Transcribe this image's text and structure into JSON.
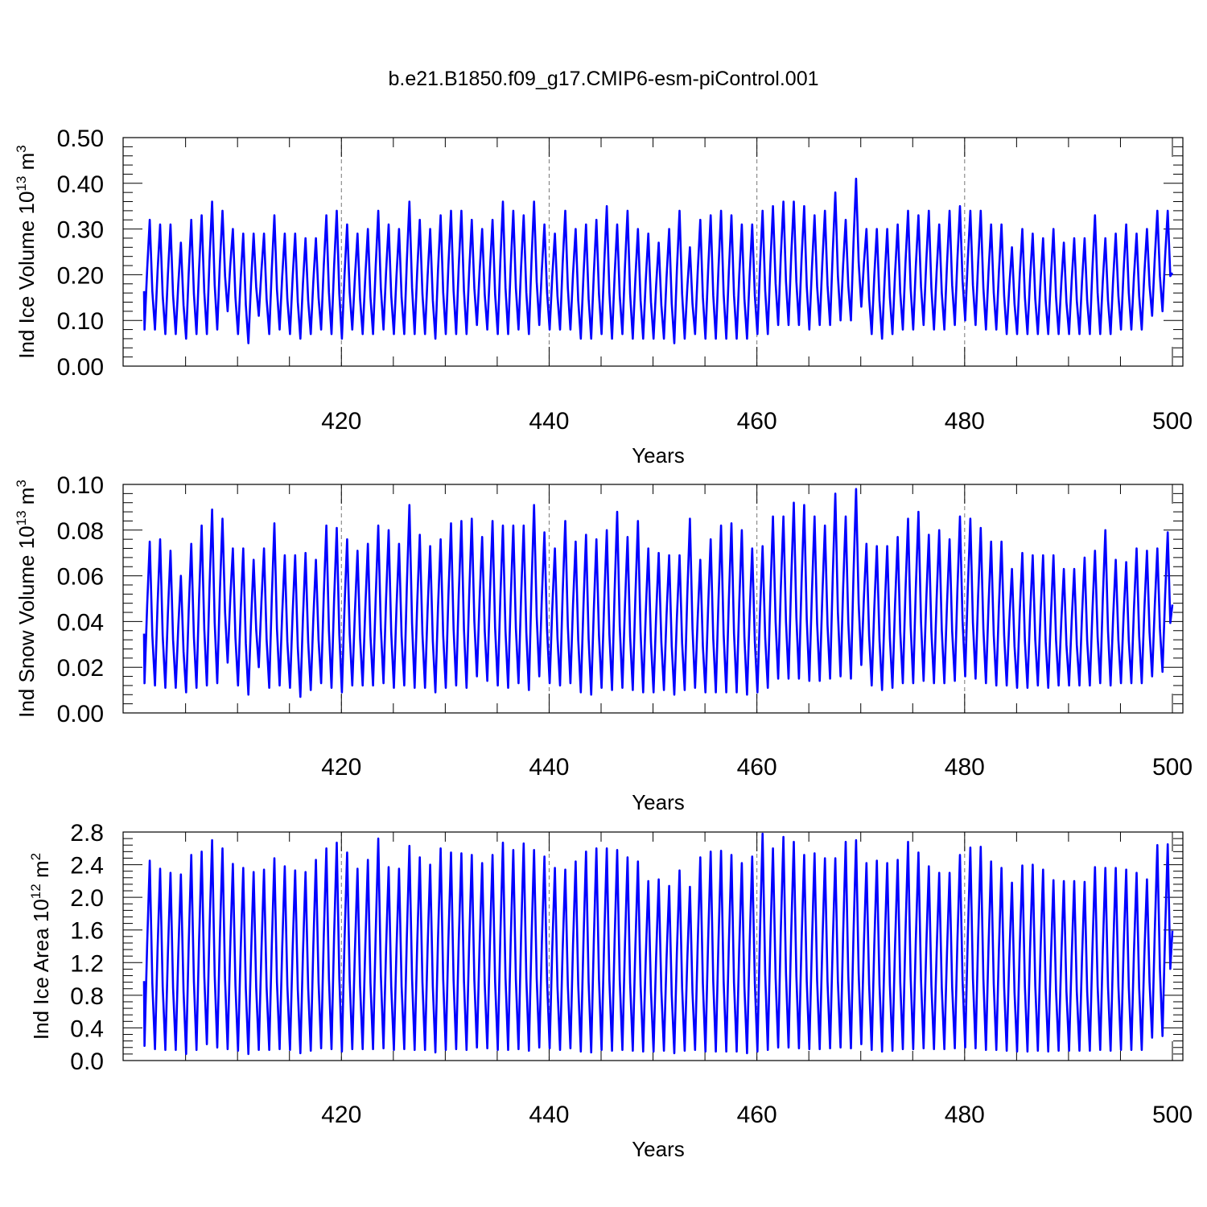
{
  "title": "b.e21.B1850.f09_g17.CMIP6-esm-piControl.001",
  "colors": {
    "series": "#0000ff",
    "axes": "#000000",
    "grid": "#777777"
  },
  "chart_data": [
    {
      "type": "line",
      "ylabel": {
        "base": "Ind Ice Volume 10",
        "exp": "13",
        "unit": " m",
        "unit_exp": "3"
      },
      "xlabel": "Years",
      "xlim": [
        401,
        500
      ],
      "ylim": [
        0.0,
        0.5
      ],
      "xticks": [
        420,
        440,
        460,
        480,
        500
      ],
      "xtick_labels": [
        "420",
        "440",
        "460",
        "480",
        "500"
      ],
      "yticks": [
        0.0,
        0.1,
        0.2,
        0.3,
        0.4,
        0.5
      ],
      "ytick_labels": [
        "0.00",
        "0.10",
        "0.20",
        "0.30",
        "0.40",
        "0.50"
      ],
      "grid": "vertical dashed at major x ticks",
      "series": [
        {
          "x_start": 401,
          "x_end": 500,
          "annual_max": [
            0.32,
            0.31,
            0.31,
            0.27,
            0.32,
            0.33,
            0.36,
            0.34,
            0.3,
            0.29,
            0.29,
            0.29,
            0.33,
            0.29,
            0.29,
            0.28,
            0.28,
            0.33,
            0.34,
            0.31,
            0.29,
            0.3,
            0.34,
            0.31,
            0.3,
            0.36,
            0.32,
            0.3,
            0.33,
            0.34,
            0.34,
            0.32,
            0.3,
            0.32,
            0.36,
            0.34,
            0.33,
            0.36,
            0.31,
            0.29,
            0.34,
            0.3,
            0.31,
            0.32,
            0.35,
            0.31,
            0.34,
            0.3,
            0.29,
            0.27,
            0.3,
            0.34,
            0.26,
            0.32,
            0.33,
            0.34,
            0.33,
            0.31,
            0.31,
            0.34,
            0.35,
            0.36,
            0.36,
            0.35,
            0.33,
            0.34,
            0.38,
            0.32,
            0.41,
            0.3,
            0.3,
            0.3,
            0.31,
            0.34,
            0.33,
            0.34,
            0.31,
            0.34,
            0.35,
            0.34,
            0.34,
            0.31,
            0.31,
            0.26,
            0.3,
            0.29,
            0.28,
            0.3,
            0.27,
            0.28,
            0.28,
            0.33,
            0.28,
            0.29,
            0.31,
            0.29,
            0.3,
            0.34,
            0.34
          ],
          "annual_min": [
            0.08,
            0.08,
            0.07,
            0.07,
            0.06,
            0.07,
            0.07,
            0.08,
            0.12,
            0.07,
            0.05,
            0.11,
            0.07,
            0.08,
            0.07,
            0.06,
            0.07,
            0.08,
            0.07,
            0.06,
            0.08,
            0.07,
            0.07,
            0.08,
            0.07,
            0.07,
            0.07,
            0.07,
            0.06,
            0.07,
            0.07,
            0.07,
            0.09,
            0.08,
            0.07,
            0.07,
            0.08,
            0.07,
            0.09,
            0.08,
            0.08,
            0.08,
            0.06,
            0.06,
            0.07,
            0.06,
            0.07,
            0.06,
            0.06,
            0.06,
            0.06,
            0.05,
            0.06,
            0.07,
            0.06,
            0.06,
            0.06,
            0.06,
            0.06,
            0.07,
            0.07,
            0.09,
            0.09,
            0.09,
            0.08,
            0.09,
            0.09,
            0.1,
            0.1,
            0.13,
            0.07,
            0.06,
            0.07,
            0.08,
            0.08,
            0.09,
            0.08,
            0.08,
            0.09,
            0.1,
            0.09,
            0.08,
            0.08,
            0.07,
            0.07,
            0.07,
            0.07,
            0.07,
            0.07,
            0.07,
            0.07,
            0.07,
            0.07,
            0.07,
            0.08,
            0.08,
            0.08,
            0.11,
            0.12
          ]
        }
      ]
    },
    {
      "type": "line",
      "ylabel": {
        "base": "Ind Snow Volume 10",
        "exp": "13",
        "unit": " m",
        "unit_exp": "3"
      },
      "xlabel": "Years",
      "xlim": [
        401,
        500
      ],
      "ylim": [
        0.0,
        0.1
      ],
      "xticks": [
        420,
        440,
        460,
        480,
        500
      ],
      "xtick_labels": [
        "420",
        "440",
        "460",
        "480",
        "500"
      ],
      "yticks": [
        0.0,
        0.02,
        0.04,
        0.06,
        0.08,
        0.1
      ],
      "ytick_labels": [
        "0.00",
        "0.02",
        "0.04",
        "0.06",
        "0.08",
        "0.10"
      ],
      "grid": "vertical dashed at major x ticks",
      "series": [
        {
          "x_start": 401,
          "x_end": 500,
          "annual_max": [
            0.075,
            0.076,
            0.071,
            0.06,
            0.074,
            0.082,
            0.089,
            0.085,
            0.072,
            0.072,
            0.067,
            0.072,
            0.083,
            0.069,
            0.069,
            0.07,
            0.067,
            0.082,
            0.081,
            0.076,
            0.071,
            0.074,
            0.082,
            0.08,
            0.074,
            0.091,
            0.078,
            0.073,
            0.076,
            0.083,
            0.084,
            0.085,
            0.077,
            0.084,
            0.082,
            0.082,
            0.082,
            0.091,
            0.079,
            0.072,
            0.084,
            0.075,
            0.078,
            0.076,
            0.08,
            0.088,
            0.077,
            0.084,
            0.072,
            0.07,
            0.069,
            0.069,
            0.085,
            0.067,
            0.076,
            0.082,
            0.083,
            0.08,
            0.072,
            0.073,
            0.086,
            0.086,
            0.092,
            0.091,
            0.086,
            0.082,
            0.096,
            0.086,
            0.098,
            0.074,
            0.073,
            0.073,
            0.077,
            0.085,
            0.088,
            0.078,
            0.08,
            0.076,
            0.086,
            0.085,
            0.081,
            0.075,
            0.075,
            0.063,
            0.07,
            0.069,
            0.069,
            0.069,
            0.063,
            0.063,
            0.068,
            0.071,
            0.08,
            0.067,
            0.066,
            0.072,
            0.071,
            0.072,
            0.079
          ],
          "annual_min": [
            0.013,
            0.012,
            0.011,
            0.011,
            0.009,
            0.011,
            0.012,
            0.013,
            0.022,
            0.012,
            0.008,
            0.02,
            0.011,
            0.012,
            0.011,
            0.007,
            0.01,
            0.013,
            0.011,
            0.009,
            0.012,
            0.012,
            0.012,
            0.013,
            0.011,
            0.012,
            0.011,
            0.011,
            0.009,
            0.011,
            0.012,
            0.011,
            0.016,
            0.014,
            0.012,
            0.011,
            0.013,
            0.01,
            0.016,
            0.013,
            0.012,
            0.013,
            0.009,
            0.008,
            0.011,
            0.01,
            0.011,
            0.01,
            0.009,
            0.009,
            0.01,
            0.008,
            0.01,
            0.011,
            0.009,
            0.009,
            0.009,
            0.009,
            0.008,
            0.009,
            0.011,
            0.015,
            0.015,
            0.015,
            0.014,
            0.014,
            0.015,
            0.016,
            0.015,
            0.021,
            0.012,
            0.01,
            0.011,
            0.013,
            0.013,
            0.014,
            0.013,
            0.013,
            0.014,
            0.016,
            0.015,
            0.013,
            0.012,
            0.012,
            0.011,
            0.011,
            0.012,
            0.011,
            0.012,
            0.012,
            0.012,
            0.012,
            0.013,
            0.012,
            0.013,
            0.013,
            0.013,
            0.016,
            0.018
          ]
        }
      ]
    },
    {
      "type": "line",
      "ylabel": {
        "base": "Ind Ice Area 10",
        "exp": "12",
        "unit": " m",
        "unit_exp": "2"
      },
      "xlabel": "Years",
      "xlim": [
        401,
        500
      ],
      "ylim": [
        0.0,
        2.8
      ],
      "xticks": [
        420,
        440,
        460,
        480,
        500
      ],
      "xtick_labels": [
        "420",
        "440",
        "460",
        "480",
        "500"
      ],
      "yticks": [
        0.0,
        0.4,
        0.8,
        1.2,
        1.6,
        2.0,
        2.4,
        2.8
      ],
      "ytick_labels": [
        "0.0",
        "0.4",
        "0.8",
        "1.2",
        "1.6",
        "2.0",
        "2.4",
        "2.8"
      ],
      "grid": "vertical dashed at major x ticks",
      "series": [
        {
          "x_start": 401,
          "x_end": 500,
          "annual_max": [
            2.45,
            2.35,
            2.3,
            2.28,
            2.52,
            2.56,
            2.7,
            2.6,
            2.41,
            2.36,
            2.31,
            2.34,
            2.48,
            2.38,
            2.33,
            2.31,
            2.46,
            2.6,
            2.67,
            2.55,
            2.35,
            2.46,
            2.72,
            2.37,
            2.35,
            2.63,
            2.49,
            2.4,
            2.6,
            2.55,
            2.54,
            2.52,
            2.42,
            2.52,
            2.67,
            2.58,
            2.66,
            2.58,
            2.5,
            2.36,
            2.34,
            2.44,
            2.56,
            2.6,
            2.6,
            2.58,
            2.49,
            2.44,
            2.2,
            2.22,
            2.14,
            2.33,
            2.13,
            2.49,
            2.56,
            2.57,
            2.52,
            2.42,
            2.5,
            2.78,
            2.6,
            2.74,
            2.68,
            2.52,
            2.54,
            2.48,
            2.48,
            2.68,
            2.7,
            2.42,
            2.45,
            2.42,
            2.46,
            2.68,
            2.55,
            2.38,
            2.3,
            2.3,
            2.52,
            2.61,
            2.62,
            2.44,
            2.36,
            2.18,
            2.39,
            2.4,
            2.34,
            2.21,
            2.2,
            2.2,
            2.19,
            2.37,
            2.36,
            2.36,
            2.34,
            2.3,
            2.22,
            2.64,
            2.65
          ],
          "annual_min": [
            0.18,
            0.14,
            0.13,
            0.13,
            0.08,
            0.13,
            0.2,
            0.16,
            0.14,
            0.12,
            0.08,
            0.13,
            0.13,
            0.14,
            0.13,
            0.09,
            0.12,
            0.15,
            0.14,
            0.11,
            0.14,
            0.14,
            0.14,
            0.15,
            0.13,
            0.14,
            0.13,
            0.13,
            0.1,
            0.13,
            0.14,
            0.13,
            0.16,
            0.15,
            0.13,
            0.13,
            0.14,
            0.12,
            0.16,
            0.15,
            0.13,
            0.15,
            0.11,
            0.1,
            0.13,
            0.12,
            0.13,
            0.12,
            0.11,
            0.11,
            0.12,
            0.09,
            0.12,
            0.13,
            0.11,
            0.11,
            0.11,
            0.11,
            0.09,
            0.11,
            0.13,
            0.16,
            0.16,
            0.15,
            0.14,
            0.14,
            0.15,
            0.16,
            0.15,
            0.2,
            0.13,
            0.11,
            0.12,
            0.14,
            0.14,
            0.15,
            0.14,
            0.14,
            0.15,
            0.16,
            0.15,
            0.13,
            0.13,
            0.12,
            0.11,
            0.11,
            0.12,
            0.11,
            0.12,
            0.12,
            0.12,
            0.12,
            0.13,
            0.12,
            0.13,
            0.13,
            0.13,
            0.28,
            0.3
          ]
        }
      ]
    }
  ]
}
